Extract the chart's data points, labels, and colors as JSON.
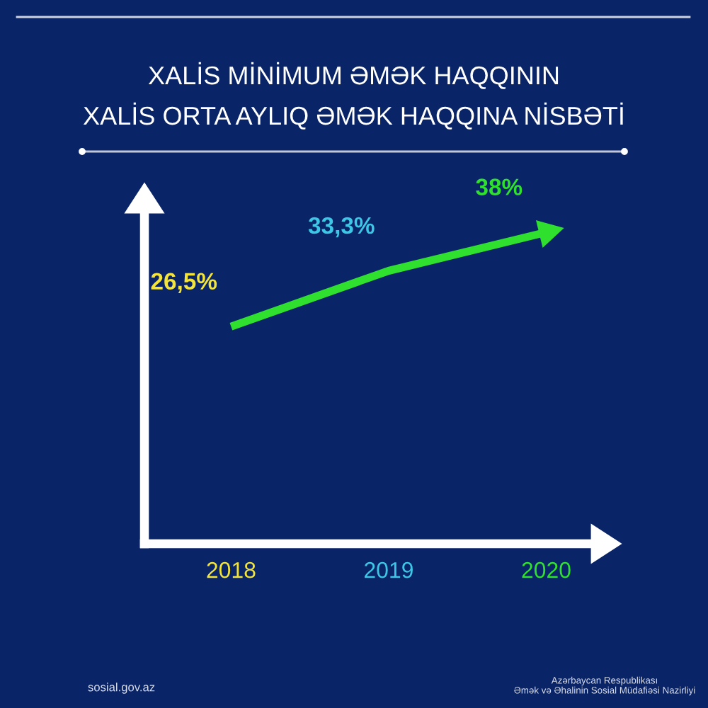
{
  "chart_data": {
    "type": "line",
    "title": "XALİS MİNİMUM ƏMƏK HAQQININ\nXALİS ORTA AYLIQ ƏMƏK HAQQINA NİSBƏTİ",
    "categories": [
      "2018",
      "2019",
      "2020"
    ],
    "values": [
      26.5,
      33.3,
      38
    ],
    "value_labels": [
      "26,5%",
      "33,3%",
      "38%"
    ],
    "color": "#2fe02f",
    "colors": [
      "#f2e43a",
      "#3ec6e6",
      "#2fe02f"
    ],
    "tick_labels": "x",
    "line_style": "solid",
    "annotations": [
      "sosial.gov.az",
      "Azərbaycan Respublikası",
      "Əmək və Əhalinin Sosial Müdafiəsi Nazirliyi"
    ]
  }
}
